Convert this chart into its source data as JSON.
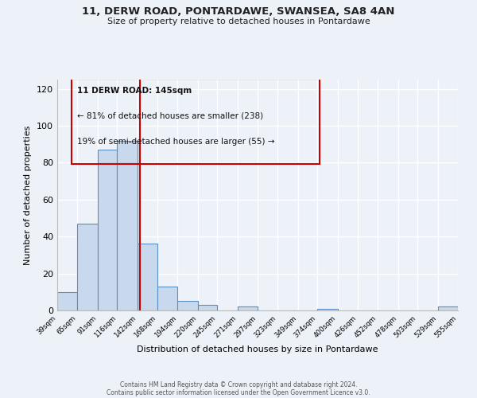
{
  "title": "11, DERW ROAD, PONTARDAWE, SWANSEA, SA8 4AN",
  "subtitle": "Size of property relative to detached houses in Pontardawe",
  "xlabel": "Distribution of detached houses by size in Pontardawe",
  "ylabel": "Number of detached properties",
  "bins": [
    39,
    65,
    91,
    116,
    142,
    168,
    194,
    220,
    245,
    271,
    297,
    323,
    349,
    374,
    400,
    426,
    452,
    478,
    503,
    529,
    555
  ],
  "counts": [
    10,
    47,
    87,
    92,
    36,
    13,
    5,
    3,
    0,
    2,
    0,
    0,
    0,
    1,
    0,
    0,
    0,
    0,
    0,
    2
  ],
  "bar_color": "#c8d9ed",
  "bar_edge_color": "#5b8fc4",
  "vline_x": 145,
  "vline_color": "#cc0000",
  "annotation_title": "11 DERW ROAD: 145sqm",
  "annotation_line1": "← 81% of detached houses are smaller (238)",
  "annotation_line2": "19% of semi-detached houses are larger (55) →",
  "annotation_box_edge": "#cc0000",
  "ylim": [
    0,
    125
  ],
  "yticks": [
    0,
    20,
    40,
    60,
    80,
    100,
    120
  ],
  "background_color": "#edf2f9",
  "grid_color": "#ffffff",
  "footer_line1": "Contains HM Land Registry data © Crown copyright and database right 2024.",
  "footer_line2": "Contains public sector information licensed under the Open Government Licence v3.0."
}
